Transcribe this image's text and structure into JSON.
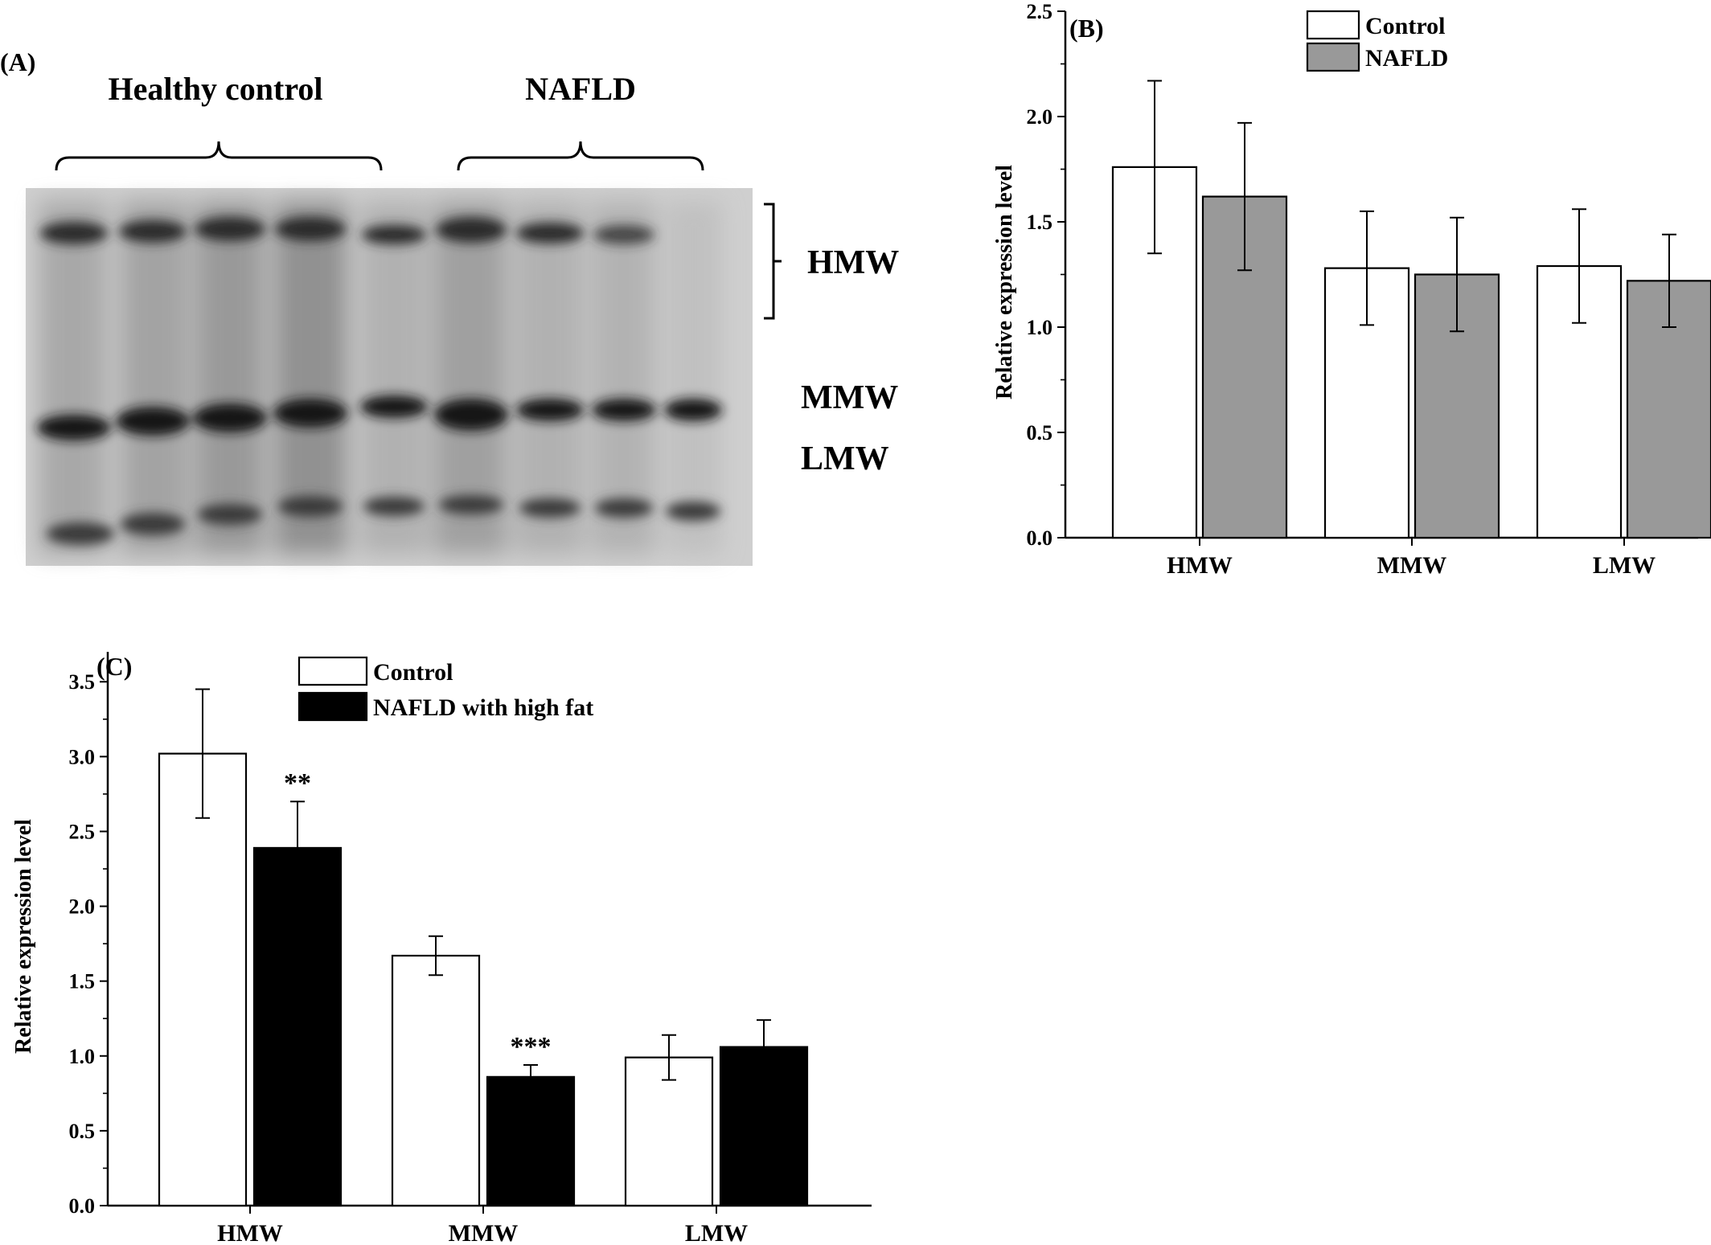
{
  "panel_a": {
    "label": "(A)",
    "group_labels": [
      "Healthy control",
      "NAFLD"
    ],
    "band_labels": [
      "HMW",
      "MMW",
      "LMW"
    ]
  },
  "chart_data": [
    {
      "panel_label": "(B)",
      "type": "bar",
      "categories": [
        "HMW",
        "MMW",
        "LMW"
      ],
      "ylabel": "Relative expression level",
      "xlabel": "",
      "ylim": [
        0,
        2.5
      ],
      "yticks": [
        "0.0",
        "0.5",
        "1.0",
        "1.5",
        "2.0",
        "2.5"
      ],
      "legend_position": "top-center",
      "series": [
        {
          "name": "Control",
          "color": "#ffffff",
          "values": [
            1.76,
            1.28,
            1.29
          ],
          "errors": [
            0.41,
            0.27,
            0.27
          ]
        },
        {
          "name": "NAFLD",
          "color": "#999999",
          "values": [
            1.62,
            1.25,
            1.22
          ],
          "errors": [
            0.35,
            0.27,
            0.22
          ]
        }
      ],
      "annotations": []
    },
    {
      "panel_label": "(C)",
      "type": "bar",
      "categories": [
        "HMW",
        "MMW",
        "LMW"
      ],
      "ylabel": "Relative expression level",
      "xlabel": "",
      "ylim": [
        0,
        3.7
      ],
      "yticks": [
        "0.0",
        "0.5",
        "1.0",
        "1.5",
        "2.0",
        "2.5",
        "3.0",
        "3.5"
      ],
      "legend_position": "top-center",
      "series": [
        {
          "name": "Control",
          "color": "#ffffff",
          "values": [
            3.02,
            1.67,
            0.99
          ],
          "errors": [
            0.43,
            0.13,
            0.15
          ]
        },
        {
          "name": "NAFLD with high fat",
          "color": "#000000",
          "values": [
            2.39,
            0.86,
            1.06
          ],
          "errors": [
            0.31,
            0.08,
            0.18
          ]
        }
      ],
      "annotations": [
        {
          "category": "HMW",
          "series": 1,
          "text": "**"
        },
        {
          "category": "MMW",
          "series": 1,
          "text": "***"
        }
      ]
    }
  ]
}
